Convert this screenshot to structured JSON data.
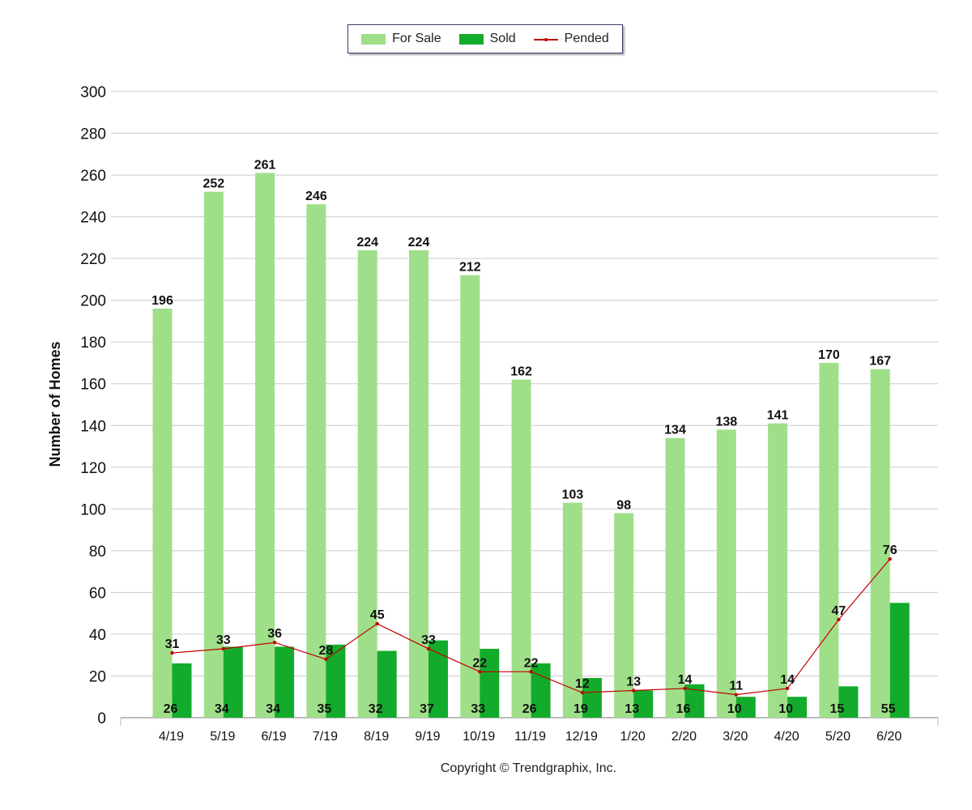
{
  "legend": {
    "for_sale": "For Sale",
    "sold": "Sold",
    "pended": "Pended"
  },
  "copyright": "Copyright © Trendgraphix, Inc.",
  "colors": {
    "for_sale": "#a0df89",
    "sold": "#13ab2b",
    "pended": "#c00000",
    "grid": "#cccccc"
  },
  "chart_data": {
    "type": "bar",
    "ylabel": "Number of Homes",
    "xlabel": "",
    "ylim": [
      0,
      300
    ],
    "yticks": [
      0,
      20,
      40,
      60,
      80,
      100,
      120,
      140,
      160,
      180,
      200,
      220,
      240,
      260,
      280,
      300
    ],
    "grid": true,
    "legend_position": "top-center",
    "categories": [
      "4/19",
      "5/19",
      "6/19",
      "7/19",
      "8/19",
      "9/19",
      "10/19",
      "11/19",
      "12/19",
      "1/20",
      "2/20",
      "3/20",
      "4/20",
      "5/20",
      "6/20"
    ],
    "series": [
      {
        "name": "For Sale",
        "type": "bar",
        "values": [
          196,
          252,
          261,
          246,
          224,
          224,
          212,
          162,
          103,
          98,
          134,
          138,
          141,
          170,
          167
        ]
      },
      {
        "name": "Sold",
        "type": "bar",
        "values": [
          26,
          34,
          34,
          35,
          32,
          37,
          33,
          26,
          19,
          13,
          16,
          10,
          10,
          15,
          55
        ]
      },
      {
        "name": "Pended",
        "type": "line",
        "values": [
          31,
          33,
          36,
          28,
          45,
          33,
          22,
          22,
          12,
          13,
          14,
          11,
          14,
          47,
          76
        ]
      }
    ]
  }
}
